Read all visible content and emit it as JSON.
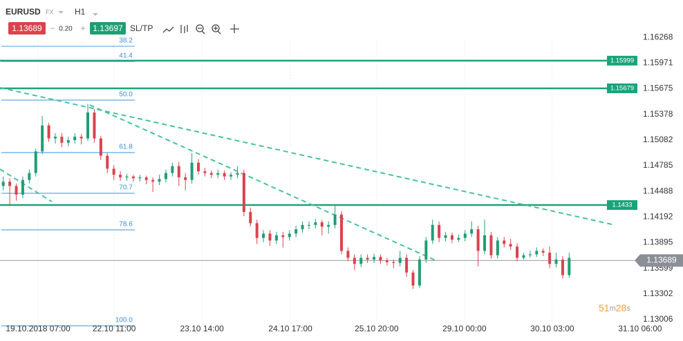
{
  "header": {
    "symbol": "EURUSD",
    "market": "FX",
    "timeframe": "H1",
    "bid": "1.13689",
    "minus": "−",
    "spread": "0.20",
    "plus": "+",
    "ask": "1.13697",
    "sltp": "SL/TP"
  },
  "chart": {
    "ylim": [
      1.1295,
      1.167
    ],
    "yticks": [
      1.16268,
      1.15971,
      1.15675,
      1.15378,
      1.15082,
      1.14785,
      1.14488,
      1.14192,
      1.13895,
      1.13599,
      1.13302,
      1.13006
    ],
    "xlim": [
      0,
      210
    ],
    "xticks": [
      {
        "value": 11.7,
        "label": "19.10.2018 07:00"
      },
      {
        "value": 35.1,
        "label": "22.10 11:00"
      },
      {
        "value": 62.1,
        "label": "23.10 14:00"
      },
      {
        "value": 89.3,
        "label": "24.10 17:00"
      },
      {
        "value": 115.8,
        "label": "25.10 20:00"
      },
      {
        "value": 142.8,
        "label": "29.10 00:00"
      },
      {
        "value": 169.8,
        "label": "30.10 03:00"
      },
      {
        "value": 196.8,
        "label": "31.10 06:00"
      }
    ],
    "up_color": "#1f9e74",
    "down_color": "#d9434e",
    "candles": [
      [
        1,
        1.1455,
        1.1466,
        1.145,
        1.146
      ],
      [
        3,
        1.146,
        1.1464,
        1.1432,
        1.1455
      ],
      [
        5,
        1.1455,
        1.1458,
        1.1438,
        1.1445
      ],
      [
        7,
        1.1445,
        1.1466,
        1.1441,
        1.1462
      ],
      [
        9,
        1.1462,
        1.1474,
        1.1458,
        1.147
      ],
      [
        11,
        1.147,
        1.1498,
        1.1466,
        1.1495
      ],
      [
        13,
        1.1495,
        1.1536,
        1.1492,
        1.1525
      ],
      [
        15,
        1.1525,
        1.1528,
        1.1506,
        1.151
      ],
      [
        17,
        1.151,
        1.1516,
        1.1504,
        1.1512
      ],
      [
        19,
        1.1512,
        1.1516,
        1.15,
        1.1505
      ],
      [
        21,
        1.1505,
        1.1512,
        1.1501,
        1.1508
      ],
      [
        23,
        1.1508,
        1.1516,
        1.1504,
        1.1512
      ],
      [
        25,
        1.1512,
        1.1515,
        1.1503,
        1.151
      ],
      [
        27,
        1.151,
        1.155,
        1.1507,
        1.154
      ],
      [
        29,
        1.154,
        1.1544,
        1.1505,
        1.151
      ],
      [
        31,
        1.151,
        1.1513,
        1.1485,
        1.149
      ],
      [
        33,
        1.149,
        1.1493,
        1.147,
        1.1475
      ],
      [
        35,
        1.1475,
        1.1479,
        1.1462,
        1.1468
      ],
      [
        37,
        1.1468,
        1.1472,
        1.1461,
        1.1465
      ],
      [
        39,
        1.1465,
        1.1469,
        1.1461,
        1.1466
      ],
      [
        41,
        1.1466,
        1.1468,
        1.146,
        1.1464
      ],
      [
        43,
        1.1464,
        1.1468,
        1.146,
        1.1465
      ],
      [
        45,
        1.1465,
        1.1467,
        1.1457,
        1.1462
      ],
      [
        47,
        1.1462,
        1.1465,
        1.1448,
        1.146
      ],
      [
        49,
        1.146,
        1.1468,
        1.1456,
        1.1463
      ],
      [
        51,
        1.1463,
        1.1474,
        1.1459,
        1.147
      ],
      [
        53,
        1.147,
        1.1482,
        1.1466,
        1.1478
      ],
      [
        55,
        1.1478,
        1.1483,
        1.1455,
        1.1465
      ],
      [
        57,
        1.1465,
        1.147,
        1.145,
        1.1462
      ],
      [
        59,
        1.1462,
        1.1493,
        1.1458,
        1.1482
      ],
      [
        61,
        1.1482,
        1.1486,
        1.1468,
        1.1472
      ],
      [
        63,
        1.1472,
        1.1476,
        1.1466,
        1.147
      ],
      [
        65,
        1.147,
        1.1473,
        1.1464,
        1.1468
      ],
      [
        67,
        1.1468,
        1.1474,
        1.1464,
        1.147
      ],
      [
        69,
        1.147,
        1.1473,
        1.1462,
        1.1466
      ],
      [
        71,
        1.1466,
        1.1471,
        1.1462,
        1.1468
      ],
      [
        73,
        1.1468,
        1.1478,
        1.1464,
        1.147
      ],
      [
        75,
        1.147,
        1.1474,
        1.142,
        1.1425
      ],
      [
        77,
        1.1425,
        1.143,
        1.1408,
        1.1412
      ],
      [
        79,
        1.1412,
        1.1416,
        1.1388,
        1.1395
      ],
      [
        81,
        1.1395,
        1.1404,
        1.139,
        1.14
      ],
      [
        83,
        1.14,
        1.1404,
        1.1386,
        1.1392
      ],
      [
        85,
        1.1392,
        1.1402,
        1.1388,
        1.1398
      ],
      [
        87,
        1.1398,
        1.1402,
        1.1384,
        1.1396
      ],
      [
        89,
        1.1396,
        1.1404,
        1.1392,
        1.14
      ],
      [
        91,
        1.14,
        1.1409,
        1.1396,
        1.1405
      ],
      [
        93,
        1.1405,
        1.1414,
        1.1401,
        1.141
      ],
      [
        95,
        1.141,
        1.1414,
        1.1405,
        1.141
      ],
      [
        97,
        1.141,
        1.1417,
        1.1406,
        1.1413
      ],
      [
        99,
        1.1413,
        1.1416,
        1.1398,
        1.1408
      ],
      [
        101,
        1.1408,
        1.1414,
        1.14,
        1.141
      ],
      [
        103,
        1.141,
        1.1432,
        1.1406,
        1.1422
      ],
      [
        105,
        1.1422,
        1.1426,
        1.1376,
        1.138
      ],
      [
        107,
        1.138,
        1.1384,
        1.1368,
        1.1372
      ],
      [
        109,
        1.1372,
        1.1376,
        1.1358,
        1.1365
      ],
      [
        111,
        1.1365,
        1.1376,
        1.1361,
        1.1372
      ],
      [
        113,
        1.1372,
        1.1376,
        1.1366,
        1.137
      ],
      [
        115,
        1.137,
        1.1377,
        1.1366,
        1.1373
      ],
      [
        117,
        1.1373,
        1.1376,
        1.1365,
        1.1369
      ],
      [
        119,
        1.1369,
        1.1372,
        1.1363,
        1.1367
      ],
      [
        121,
        1.1367,
        1.137,
        1.136,
        1.1366
      ],
      [
        123,
        1.1366,
        1.138,
        1.1362,
        1.1372
      ],
      [
        125,
        1.1372,
        1.1376,
        1.135,
        1.1355
      ],
      [
        127,
        1.1355,
        1.1358,
        1.1336,
        1.134
      ],
      [
        129,
        1.134,
        1.1374,
        1.1337,
        1.137
      ],
      [
        131,
        1.137,
        1.1396,
        1.1366,
        1.1392
      ],
      [
        133,
        1.1392,
        1.1416,
        1.1388,
        1.141
      ],
      [
        135,
        1.141,
        1.1414,
        1.139,
        1.1395
      ],
      [
        137,
        1.1395,
        1.1402,
        1.1391,
        1.1398
      ],
      [
        139,
        1.1398,
        1.1401,
        1.1389,
        1.1393
      ],
      [
        141,
        1.1393,
        1.1399,
        1.139,
        1.1395
      ],
      [
        143,
        1.1395,
        1.1404,
        1.1391,
        1.14
      ],
      [
        145,
        1.14,
        1.1414,
        1.1396,
        1.1405
      ],
      [
        147,
        1.1405,
        1.1409,
        1.1362,
        1.138
      ],
      [
        149,
        1.138,
        1.1416,
        1.1376,
        1.1398
      ],
      [
        151,
        1.1398,
        1.1402,
        1.1371,
        1.1375
      ],
      [
        153,
        1.1375,
        1.1396,
        1.1371,
        1.1392
      ],
      [
        155,
        1.1392,
        1.1396,
        1.1384,
        1.1388
      ],
      [
        157,
        1.1388,
        1.1394,
        1.1381,
        1.1385
      ],
      [
        159,
        1.1385,
        1.1389,
        1.1368,
        1.1372
      ],
      [
        161,
        1.1372,
        1.1378,
        1.137,
        1.1375
      ],
      [
        163,
        1.1375,
        1.138,
        1.1372,
        1.1376
      ],
      [
        165,
        1.1376,
        1.1384,
        1.1373,
        1.138
      ],
      [
        167,
        1.138,
        1.1383,
        1.1374,
        1.1378
      ],
      [
        169,
        1.1378,
        1.1385,
        1.136,
        1.1365
      ],
      [
        171,
        1.1365,
        1.1378,
        1.1361,
        1.137
      ],
      [
        173,
        1.137,
        1.1374,
        1.1348,
        1.1352
      ],
      [
        175,
        1.1352,
        1.1378,
        1.1349,
        1.1372
      ]
    ],
    "fib_color": "#5aa9e6",
    "fib": [
      {
        "level": "38.2",
        "price": 1.16165
      },
      {
        "level": "41.4",
        "price": 1.1599
      },
      {
        "level": "50.0",
        "price": 1.15543
      },
      {
        "level": "61.8",
        "price": 1.14937
      },
      {
        "level": "70.7",
        "price": 1.14466
      },
      {
        "level": "78.6",
        "price": 1.14043
      },
      {
        "level": "100.0",
        "price": 1.12934
      }
    ],
    "fib_xlim": [
      0,
      41.4
    ],
    "levels_color": "#1aa37a",
    "levels": [
      1.15999,
      1.15679,
      1.1433
    ],
    "trend_color": "#45c29c",
    "trendlines": [
      {
        "x": [
          0,
          188.1
        ],
        "price": [
          1.15687,
          1.14107
        ]
      },
      {
        "x": [
          0,
          15.9
        ],
        "price": [
          1.14745,
          1.1437
        ]
      },
      {
        "x": [
          27.6,
          134.3
        ],
        "price": [
          1.15487,
          1.13684
        ]
      }
    ],
    "current_price": 1.13689,
    "countdown": {
      "minutes": "51",
      "m": "m",
      "seconds": "28",
      "s": "s"
    }
  }
}
